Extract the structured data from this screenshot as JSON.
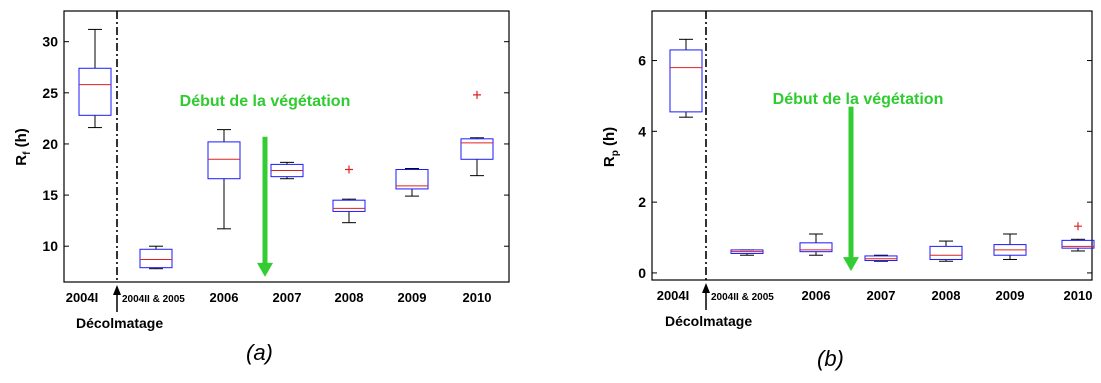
{
  "captions": {
    "a": "(a)",
    "b": "(b)"
  },
  "colors": {
    "box": "#1a1aff",
    "median": "#e02020",
    "outlier": "#e02020",
    "whisker": "#000000",
    "annotation_arrow": "#33cc33"
  },
  "chart_data": [
    {
      "type": "box",
      "panel_label": "(a)",
      "ylabel_main": "R",
      "ylabel_sub": "f",
      "ylabel_unit": "(h)",
      "ylim": [
        6.5,
        33
      ],
      "yticks": [
        10,
        15,
        20,
        25,
        30
      ],
      "grid": false,
      "categories": [
        "2004I",
        "2004II & 2005",
        "2006",
        "2007",
        "2008",
        "2009",
        "2010"
      ],
      "boxes": [
        {
          "min": 21.6,
          "q1": 22.8,
          "median": 25.8,
          "q3": 27.4,
          "max": 31.2,
          "outliers": []
        },
        {
          "min": 7.8,
          "q1": 7.9,
          "median": 8.7,
          "q3": 9.7,
          "max": 10.0,
          "outliers": []
        },
        {
          "min": 11.7,
          "q1": 16.6,
          "median": 18.5,
          "q3": 20.2,
          "max": 21.4,
          "outliers": []
        },
        {
          "min": 16.6,
          "q1": 16.8,
          "median": 17.4,
          "q3": 18.0,
          "max": 18.2,
          "outliers": []
        },
        {
          "min": 12.3,
          "q1": 13.4,
          "median": 13.7,
          "q3": 14.5,
          "max": 14.6,
          "outliers": [
            17.5
          ]
        },
        {
          "min": 14.9,
          "q1": 15.6,
          "median": 15.9,
          "q3": 17.5,
          "max": 17.6,
          "outliers": []
        },
        {
          "min": 16.9,
          "q1": 18.5,
          "median": 20.1,
          "q3": 20.5,
          "max": 20.6,
          "outliers": [
            24.8
          ]
        }
      ],
      "separator_label": "Décolmatage",
      "annotation": {
        "text": "Début de la végétation",
        "arrow_from": 20.7,
        "arrow_to": 7.0
      }
    },
    {
      "type": "box",
      "panel_label": "(b)",
      "ylabel_main": "R",
      "ylabel_sub": "p",
      "ylabel_unit": "(h)",
      "ylim": [
        -0.2,
        7.4
      ],
      "yticks": [
        0,
        2,
        4,
        6
      ],
      "grid": false,
      "categories": [
        "2004I",
        "2004II & 2005",
        "2006",
        "2007",
        "2008",
        "2009",
        "2010"
      ],
      "boxes": [
        {
          "min": 4.4,
          "q1": 4.55,
          "median": 5.8,
          "q3": 6.3,
          "max": 6.6,
          "outliers": []
        },
        {
          "min": 0.5,
          "q1": 0.55,
          "median": 0.6,
          "q3": 0.65,
          "max": 0.65,
          "outliers": []
        },
        {
          "min": 0.5,
          "q1": 0.6,
          "median": 0.65,
          "q3": 0.85,
          "max": 1.1,
          "outliers": []
        },
        {
          "min": 0.33,
          "q1": 0.35,
          "median": 0.4,
          "q3": 0.48,
          "max": 0.5,
          "outliers": []
        },
        {
          "min": 0.33,
          "q1": 0.38,
          "median": 0.5,
          "q3": 0.75,
          "max": 0.9,
          "outliers": []
        },
        {
          "min": 0.38,
          "q1": 0.5,
          "median": 0.65,
          "q3": 0.8,
          "max": 1.1,
          "outliers": []
        },
        {
          "min": 0.62,
          "q1": 0.7,
          "median": 0.75,
          "q3": 0.92,
          "max": 0.95,
          "outliers": [
            1.32
          ]
        }
      ],
      "separator_label": "Décolmatage",
      "annotation": {
        "text": "Début de la végétation",
        "arrow_from": 4.7,
        "arrow_to": 0.05
      }
    }
  ]
}
